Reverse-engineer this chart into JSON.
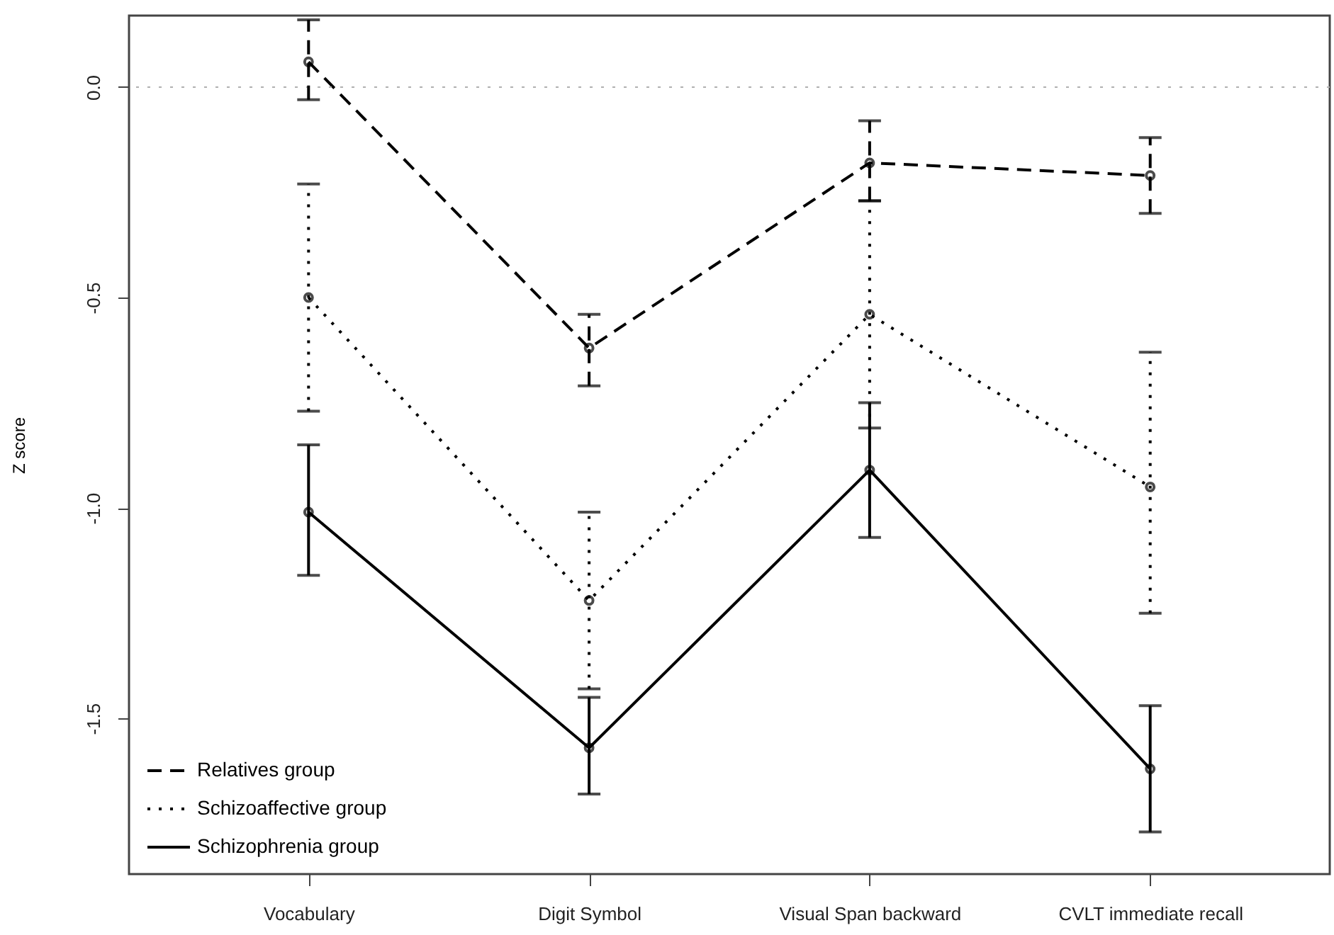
{
  "chart_data": {
    "type": "line",
    "ylabel": "Z score",
    "categories": [
      "Vocabulary",
      "Digit Symbol",
      "Visual Span backward",
      "CVLT immediate recall"
    ],
    "ylim": [
      -1.87,
      0.17
    ],
    "yticks": [
      {
        "value": 0,
        "label": "0.0"
      },
      {
        "value": -0.5,
        "label": "-0.5"
      },
      {
        "value": -1,
        "label": "-1.0"
      },
      {
        "value": -1.5,
        "label": "-1.5"
      }
    ],
    "series": [
      {
        "name": "Relatives group",
        "color": "#000000",
        "line_style": "dashed",
        "values": [
          0.06,
          -0.62,
          -0.18,
          -0.21
        ],
        "errors": [
          [
            -0.03,
            0.16
          ],
          [
            -0.71,
            -0.54
          ],
          [
            -0.27,
            -0.08
          ],
          [
            -0.3,
            -0.12
          ]
        ]
      },
      {
        "name": "Schizoaffective group",
        "color": "#000000",
        "line_style": "dotted",
        "values": [
          -0.5,
          -1.22,
          -0.54,
          -0.95
        ],
        "errors": [
          [
            -0.77,
            -0.23
          ],
          [
            -1.43,
            -1.01
          ],
          [
            -0.81,
            -0.27
          ],
          [
            -1.25,
            -0.63
          ]
        ]
      },
      {
        "name": "Schizophrenia group",
        "color": "#000000",
        "line_style": "solid",
        "values": [
          -1.01,
          -1.57,
          -0.91,
          -1.62
        ],
        "errors": [
          [
            -1.16,
            -0.85
          ],
          [
            -1.68,
            -1.45
          ],
          [
            -1.07,
            -0.75
          ],
          [
            -1.77,
            -1.47
          ]
        ]
      }
    ],
    "marker": "circle",
    "legend": "bottom left",
    "ref_lines": [
      {
        "axis": "y",
        "value": 0,
        "color": "#b0b0b0",
        "line_style": "dotted"
      }
    ]
  }
}
